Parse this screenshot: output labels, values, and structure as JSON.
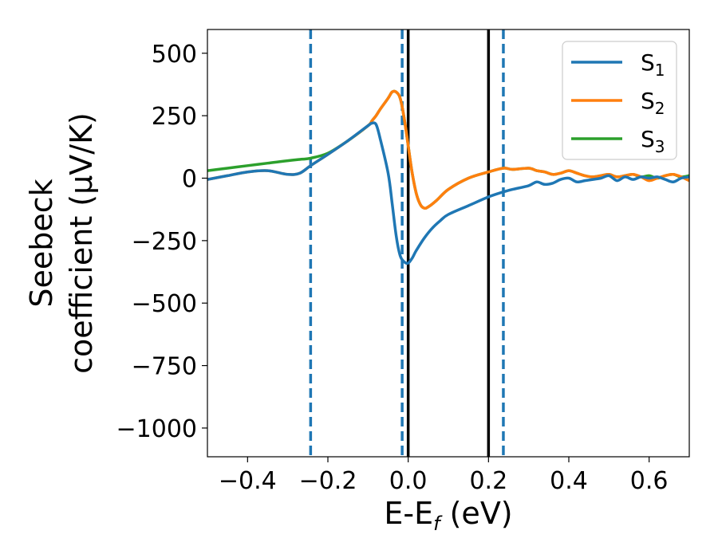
{
  "chart_data": {
    "type": "line",
    "xlabel": "E-E",
    "xlabel_subscript": "f",
    "xlabel_suffix": " (eV)",
    "ylabel_line1": "Seebeck",
    "ylabel_line2": "coefficient  (μV/K)",
    "xlim": [
      -0.5,
      0.7
    ],
    "ylim": [
      -1115,
      595
    ],
    "xticks": [
      -0.4,
      -0.2,
      0.0,
      0.2,
      0.4,
      0.6
    ],
    "xtick_labels": [
      "−0.4",
      "−0.2",
      "0.0",
      "0.2",
      "0.4",
      "0.6"
    ],
    "yticks": [
      500,
      250,
      0,
      -250,
      -500,
      -750,
      -1000
    ],
    "ytick_labels": [
      "500",
      "250",
      "0",
      "−250",
      "−500",
      "−750",
      "−1000"
    ],
    "grid": false,
    "legend_position": "top-right",
    "vlines_solid": [
      0.0,
      0.2
    ],
    "vlines_dashed": [
      -0.243,
      -0.015,
      0.237
    ],
    "vline_solid_color": "#000000",
    "vline_dashed_color": "#1f77b4",
    "series": [
      {
        "name": "S",
        "subscript": "1",
        "color": "#1f77b4",
        "x": [
          -0.5,
          -0.45,
          -0.4,
          -0.35,
          -0.3,
          -0.27,
          -0.243,
          -0.2,
          -0.15,
          -0.1,
          -0.09,
          -0.08,
          -0.07,
          -0.05,
          -0.04,
          -0.03,
          -0.02,
          -0.01,
          0.0,
          0.01,
          0.02,
          0.04,
          0.06,
          0.08,
          0.1,
          0.15,
          0.2,
          0.237,
          0.26,
          0.3,
          0.32,
          0.34,
          0.36,
          0.38,
          0.4,
          0.42,
          0.44,
          0.46,
          0.48,
          0.5,
          0.52,
          0.54,
          0.56,
          0.58,
          0.6,
          0.62,
          0.64,
          0.66,
          0.68,
          0.7
        ],
        "values": [
          -5,
          10,
          25,
          30,
          15,
          20,
          50,
          95,
          150,
          210,
          220,
          215,
          160,
          20,
          -100,
          -230,
          -310,
          -335,
          -340,
          -320,
          -290,
          -240,
          -200,
          -170,
          -145,
          -110,
          -75,
          -55,
          -45,
          -30,
          -15,
          -25,
          -20,
          -5,
          0,
          -15,
          -10,
          -5,
          0,
          10,
          -10,
          5,
          -5,
          5,
          0,
          5,
          -5,
          -15,
          0,
          5
        ]
      },
      {
        "name": "S",
        "subscript": "2",
        "color": "#ff7f0e",
        "x": [
          -0.5,
          -0.45,
          -0.4,
          -0.35,
          -0.3,
          -0.27,
          -0.243,
          -0.2,
          -0.15,
          -0.1,
          -0.09,
          -0.08,
          -0.07,
          -0.05,
          -0.04,
          -0.03,
          -0.02,
          -0.01,
          0.0,
          0.01,
          0.02,
          0.03,
          0.04,
          0.05,
          0.07,
          0.1,
          0.15,
          0.2,
          0.237,
          0.26,
          0.3,
          0.32,
          0.34,
          0.36,
          0.38,
          0.4,
          0.42,
          0.44,
          0.46,
          0.48,
          0.5,
          0.52,
          0.54,
          0.56,
          0.58,
          0.6,
          0.62,
          0.64,
          0.66,
          0.68,
          0.7
        ],
        "values": [
          -5,
          10,
          25,
          30,
          15,
          20,
          50,
          95,
          150,
          210,
          230,
          250,
          275,
          320,
          345,
          345,
          320,
          240,
          130,
          20,
          -60,
          -105,
          -120,
          -115,
          -90,
          -45,
          0,
          25,
          40,
          35,
          40,
          30,
          25,
          15,
          20,
          30,
          20,
          10,
          5,
          10,
          15,
          5,
          10,
          15,
          5,
          -10,
          0,
          10,
          15,
          5,
          -10
        ]
      },
      {
        "name": "S",
        "subscript": "3",
        "color": "#2ca02c",
        "x": [
          -0.5,
          -0.45,
          -0.4,
          -0.35,
          -0.3,
          -0.27,
          -0.243,
          -0.2,
          -0.15,
          -0.1,
          -0.09,
          -0.08,
          -0.07,
          -0.05,
          -0.04,
          -0.03,
          -0.02,
          -0.01,
          0.0,
          0.01,
          0.02,
          0.03,
          0.04,
          0.05,
          0.07,
          0.1,
          0.15,
          0.2,
          0.237,
          0.26,
          0.3,
          0.32,
          0.34,
          0.36,
          0.38,
          0.4,
          0.42,
          0.44,
          0.46,
          0.48,
          0.5,
          0.52,
          0.54,
          0.56,
          0.58,
          0.6,
          0.62,
          0.64,
          0.66,
          0.68,
          0.7
        ],
        "values": [
          30,
          40,
          50,
          60,
          70,
          75,
          80,
          100,
          150,
          210,
          230,
          250,
          275,
          320,
          345,
          345,
          320,
          240,
          130,
          20,
          -60,
          -105,
          -120,
          -115,
          -90,
          -45,
          0,
          25,
          40,
          35,
          40,
          30,
          25,
          15,
          20,
          30,
          20,
          10,
          5,
          10,
          15,
          5,
          10,
          15,
          5,
          10,
          0,
          10,
          15,
          5,
          10
        ]
      }
    ]
  }
}
